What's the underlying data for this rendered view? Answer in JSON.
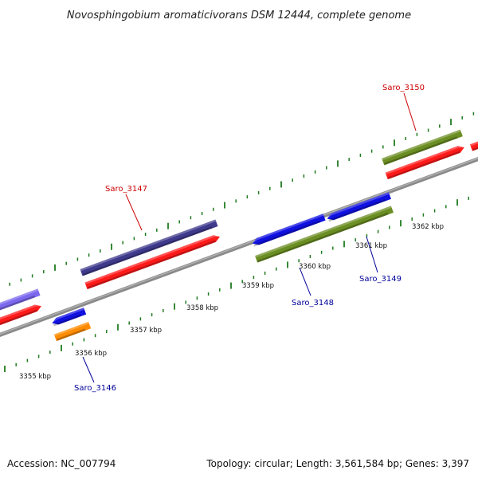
{
  "title": "Novosphingobium aromaticivorans DSM 12444, complete genome",
  "footer": {
    "accession": "Accession: NC_007794",
    "summary": "Topology: circular; Length: 3,561,584 bp; Genes: 3,397"
  },
  "scale_labels": [
    "3355 kbp",
    "3356 kbp",
    "3357 kbp",
    "3358 kbp",
    "3359 kbp",
    "3360 kbp",
    "3361 kbp",
    "3362 kbp"
  ],
  "gene_labels": [
    "Saro_3150",
    "Saro_3147",
    "Saro_3146",
    "Saro_3148",
    "Saro_3149"
  ],
  "colors": {
    "backbone": "#8a8a8a",
    "tick": "#1f7a1f",
    "forward_label": "#cc0000",
    "reverse_label": "#000099",
    "cds_red": "#ff1a1a",
    "gene_olive": "#6b8e23",
    "gene_navy": "#3f3a8c",
    "gene_lavender": "#7b68ee",
    "gene_blue": "#1010e0",
    "gene_orange": "#ff8c00"
  }
}
